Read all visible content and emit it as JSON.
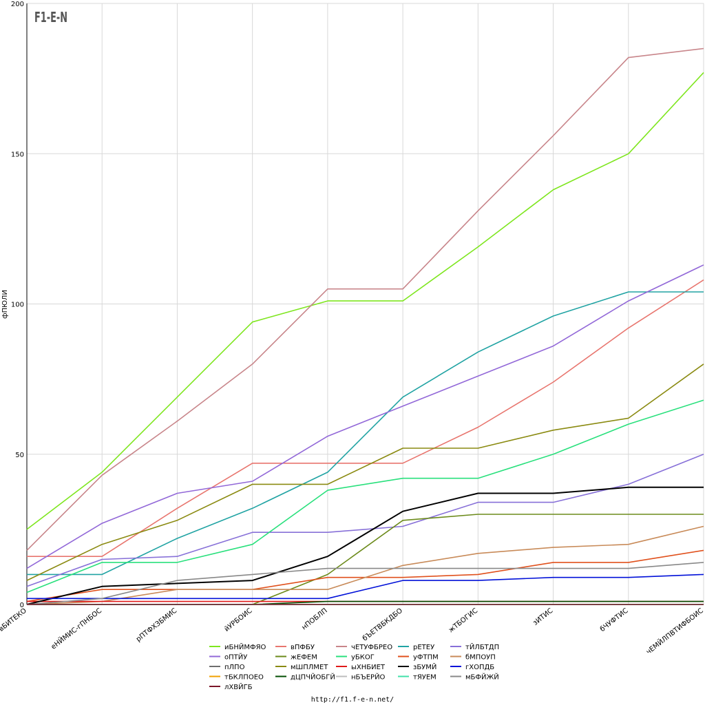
{
  "logo_text": "F1-E-N",
  "footer_url": "http://f1.f-e-n.net/",
  "chart_data": {
    "type": "line",
    "title": "",
    "xlabel": "",
    "ylabel": "фПЮЛИ",
    "ylim": [
      0,
      200
    ],
    "yticks": [
      0,
      50,
      100,
      150,
      200
    ],
    "grid": true,
    "legend_position": "bottom",
    "categories": [
      "вБИТЕКО",
      "еНЙМИС-гПНБОС",
      "рПТФХЗБМИС",
      "йУРБОИС",
      "нПОБЛП",
      "бЪЕТВБКДБО",
      "жТБОГИС",
      "зИТИС",
      "бЧУФТИС",
      "чЕМЙЛПВТИФБОИС"
    ],
    "series": [
      {
        "name": "иБНЙМФЯО",
        "color": "#7ee61e",
        "values": [
          25,
          44,
          69,
          94,
          101,
          101,
          119,
          138,
          150,
          177
        ]
      },
      {
        "name": "вПФБУ",
        "color": "#e8756e",
        "values": [
          16,
          16,
          32,
          47,
          47,
          47,
          59,
          74,
          92,
          108
        ]
      },
      {
        "name": "чЕТУФБРЕО",
        "color": "#c8858a",
        "values": [
          18,
          43,
          61,
          80,
          105,
          105,
          131,
          156,
          182,
          185
        ]
      },
      {
        "name": "рЕТЕУ",
        "color": "#20a3a3",
        "values": [
          10,
          10,
          22,
          32,
          44,
          69,
          84,
          96,
          104,
          104
        ]
      },
      {
        "name": "тЙЛБТДП",
        "color": "#8770d8",
        "values": [
          6,
          15,
          16,
          24,
          24,
          26,
          34,
          34,
          40,
          50
        ]
      },
      {
        "name": "оПТЙУ",
        "color": "#9268d8",
        "values": [
          12,
          27,
          37,
          41,
          56,
          66,
          76,
          86,
          101,
          113
        ]
      },
      {
        "name": "жЕФЕМ",
        "color": "#6b8a1a",
        "values": [
          0,
          0,
          0,
          0,
          10,
          28,
          30,
          30,
          30,
          30
        ]
      },
      {
        "name": "уБКОГ",
        "color": "#28e07c",
        "values": [
          4,
          14,
          14,
          20,
          38,
          42,
          42,
          50,
          60,
          68
        ]
      },
      {
        "name": "уФТПМ",
        "color": "#e0501c",
        "values": [
          1,
          5,
          5,
          5,
          9,
          9,
          10,
          14,
          14,
          18
        ]
      },
      {
        "name": "бМПОУП",
        "color": "#c88a58",
        "values": [
          0,
          1,
          5,
          5,
          5,
          13,
          17,
          19,
          20,
          26
        ]
      },
      {
        "name": "пЛПО",
        "color": "#6e6e6e",
        "values": [
          0,
          0,
          0,
          0,
          0,
          0,
          0,
          0,
          0,
          0
        ]
      },
      {
        "name": "мШПЛМЕТ",
        "color": "#8a8a10",
        "values": [
          8,
          20,
          28,
          40,
          40,
          52,
          52,
          58,
          62,
          80
        ]
      },
      {
        "name": "ыХНБИЕТ",
        "color": "#e01818",
        "values": [
          1,
          1,
          1,
          1,
          1,
          1,
          1,
          1,
          1,
          1
        ]
      },
      {
        "name": "зБУМЙ",
        "color": "#000000",
        "values": [
          0,
          6,
          7,
          8,
          16,
          31,
          37,
          37,
          39,
          39
        ]
      },
      {
        "name": "гХОПДБ",
        "color": "#0010d8",
        "values": [
          2,
          2,
          2,
          2,
          2,
          8,
          8,
          9,
          9,
          10
        ]
      },
      {
        "name": "тБКЛПОЕО",
        "color": "#f0a000",
        "values": [
          0,
          0,
          0,
          0,
          0,
          0,
          0,
          0,
          0,
          0
        ]
      },
      {
        "name": "дЦПЧЙОБГЙ",
        "color": "#004d00",
        "values": [
          0,
          0,
          0,
          0,
          1,
          1,
          1,
          1,
          1,
          1
        ]
      },
      {
        "name": "нБЪЕРЙО",
        "color": "#bcbcbc",
        "values": [
          0,
          0,
          0,
          0,
          0,
          0,
          0,
          0,
          0,
          0
        ]
      },
      {
        "name": "тЯУЕМ",
        "color": "#40e0a8",
        "values": [
          0,
          0,
          0,
          0,
          0,
          0,
          0,
          0,
          0,
          0
        ]
      },
      {
        "name": "мБФЙЖЙ",
        "color": "#888888",
        "values": [
          0,
          2,
          8,
          10,
          12,
          12,
          12,
          12,
          12,
          14
        ]
      },
      {
        "name": "лХВЙГБ",
        "color": "#7a1428",
        "values": [
          0,
          0,
          0,
          0,
          0,
          0,
          0,
          0,
          0,
          0
        ]
      }
    ]
  }
}
